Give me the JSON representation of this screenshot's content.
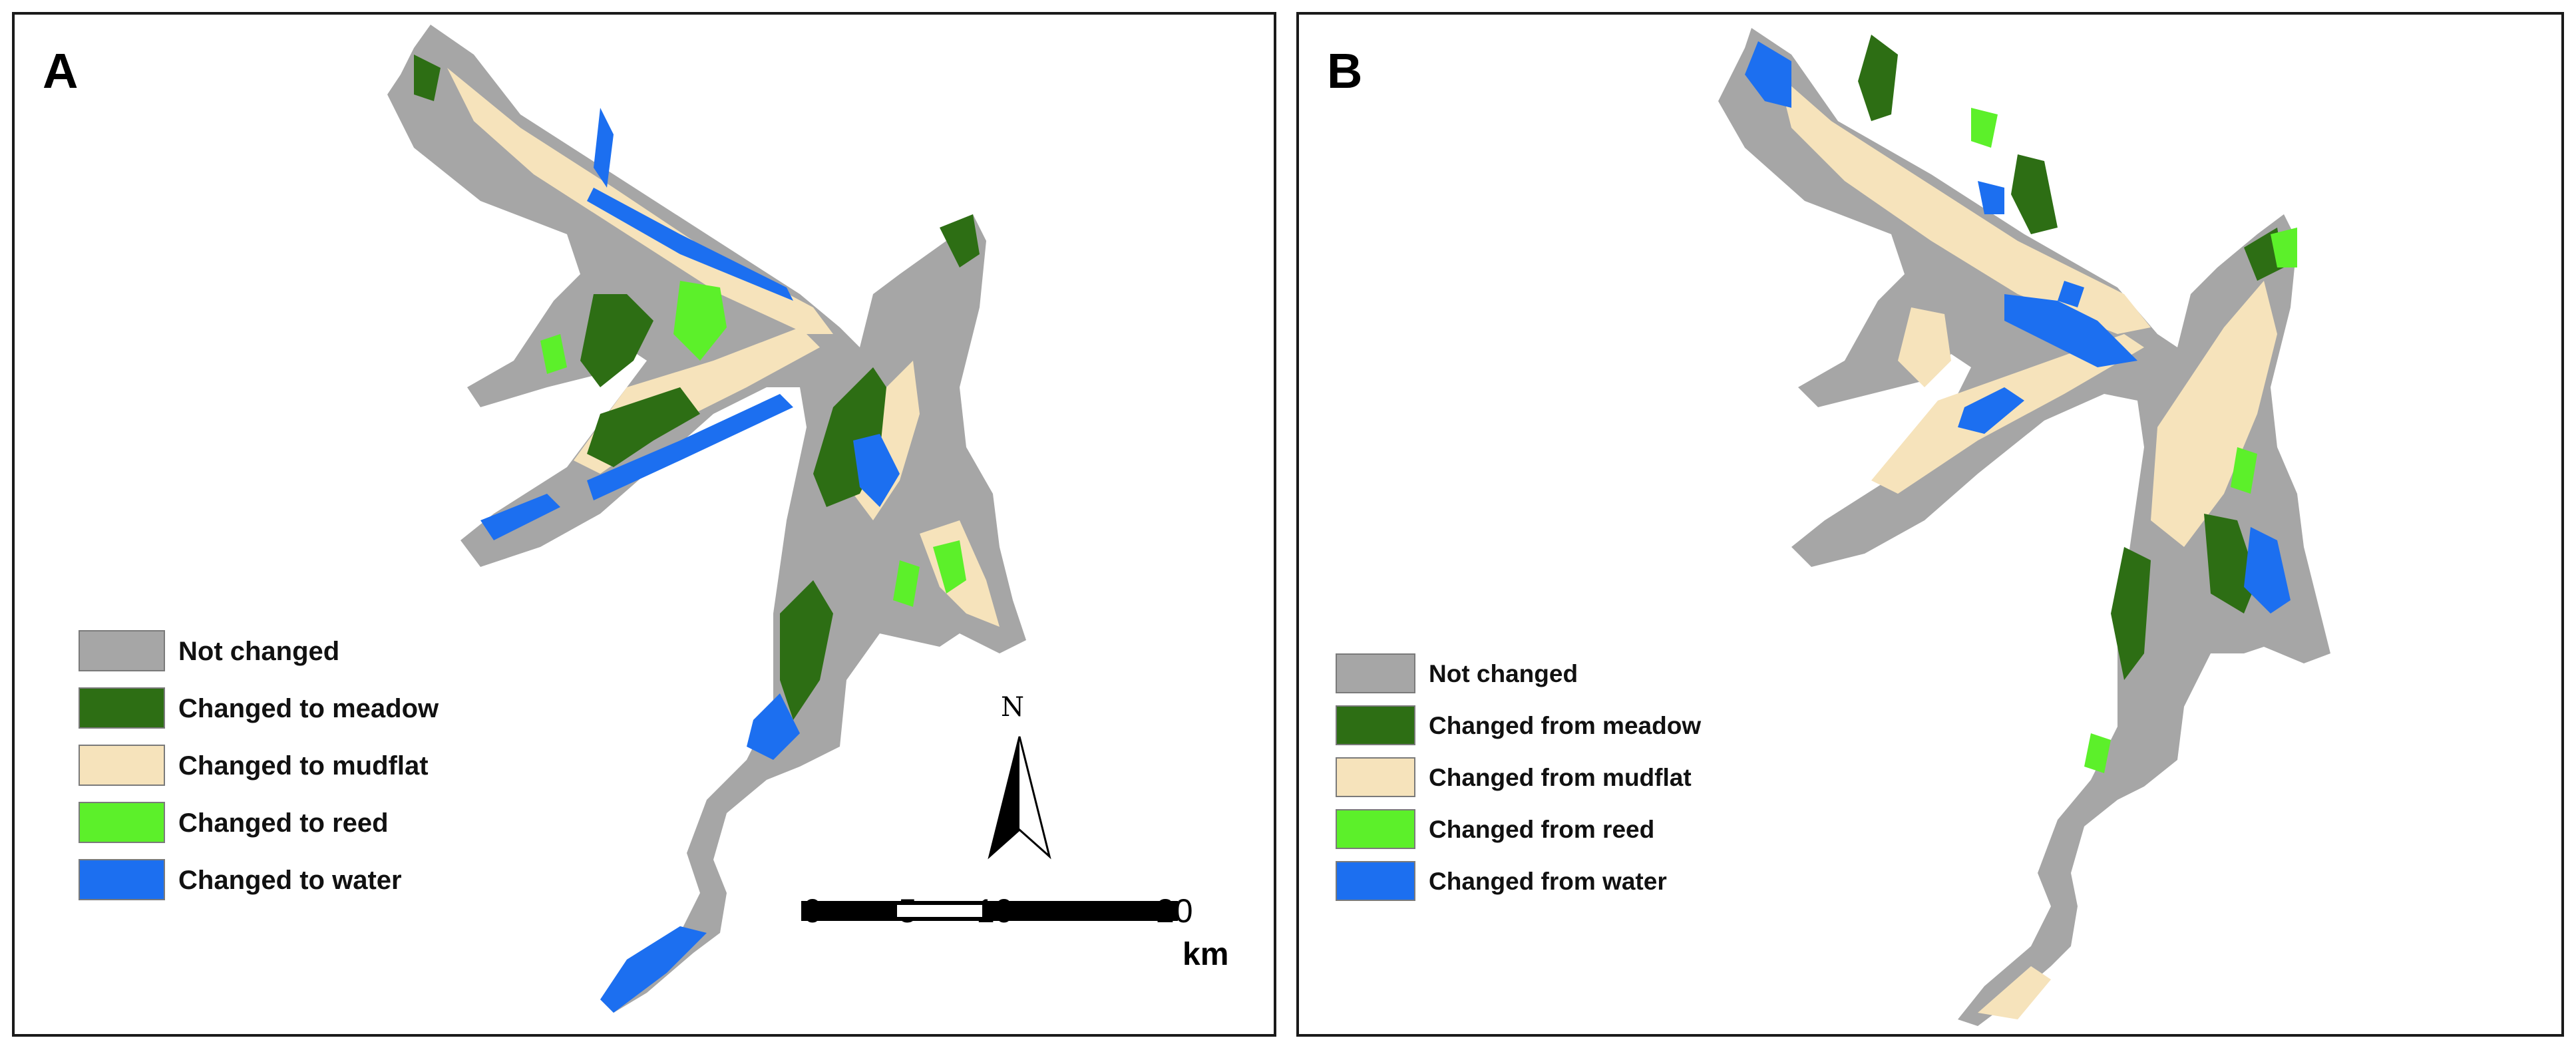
{
  "panels": [
    {
      "letter": "A",
      "legend": [
        {
          "label": "Not changed",
          "color": "#a6a6a6"
        },
        {
          "label": "Changed to meadow",
          "color": "#2d6e14"
        },
        {
          "label": "Changed to mudflat",
          "color": "#f6e3bb"
        },
        {
          "label": "Changed to reed",
          "color": "#5cf02a"
        },
        {
          "label": "Changed to water",
          "color": "#1c6ff0"
        }
      ]
    },
    {
      "letter": "B",
      "legend": [
        {
          "label": "Not changed",
          "color": "#a6a6a6"
        },
        {
          "label": "Changed from meadow",
          "color": "#2d6e14"
        },
        {
          "label": "Changed from mudflat",
          "color": "#f6e3bb"
        },
        {
          "label": "Changed from reed",
          "color": "#5cf02a"
        },
        {
          "label": "Changed from water",
          "color": "#1c6ff0"
        }
      ]
    }
  ],
  "north_arrow": {
    "label": "N"
  },
  "scale_bar": {
    "ticks": [
      "0",
      "5",
      "10",
      "20"
    ],
    "unit": "km"
  }
}
